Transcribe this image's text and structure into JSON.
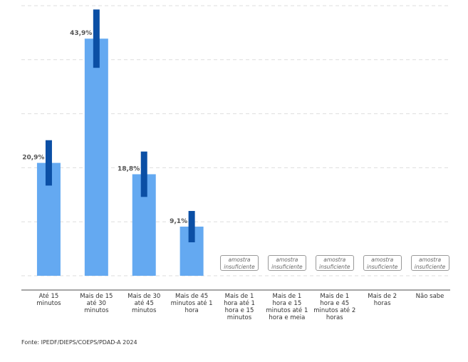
{
  "chart_data": {
    "type": "bar",
    "categories": [
      "Até 15 minutos",
      "Mais de 15 até 30 minutos",
      "Mais de 30 até 45 minutos",
      "Mais de 45 minutos até 1 hora",
      "Mais de 1 hora até 1 hora e 15 minutos",
      "Mais de 1 hora e 15 minutos até 1 hora e meia",
      "Mais de 1 hora e 45 minutos até 2 horas",
      "Mais de 2 horas",
      "Não sabe"
    ],
    "values": [
      20.9,
      43.9,
      18.8,
      9.1,
      null,
      null,
      null,
      null,
      null
    ],
    "value_labels": [
      "20,9%",
      "43,9%",
      "18,8%",
      "9,1%",
      null,
      null,
      null,
      null,
      null
    ],
    "errors": [
      4.2,
      5.4,
      4.2,
      2.9,
      null,
      null,
      null,
      null,
      null
    ],
    "null_label": "amostra insuficiente",
    "color": "#64a9f1",
    "error_color": "#0b4fa5",
    "ylim": [
      0,
      50
    ],
    "yticks": [
      0,
      10,
      20,
      30,
      40,
      50
    ],
    "grid": true,
    "source": "Fonte: IPEDF/DIEPS/COEPS/PDAD-A 2024"
  }
}
